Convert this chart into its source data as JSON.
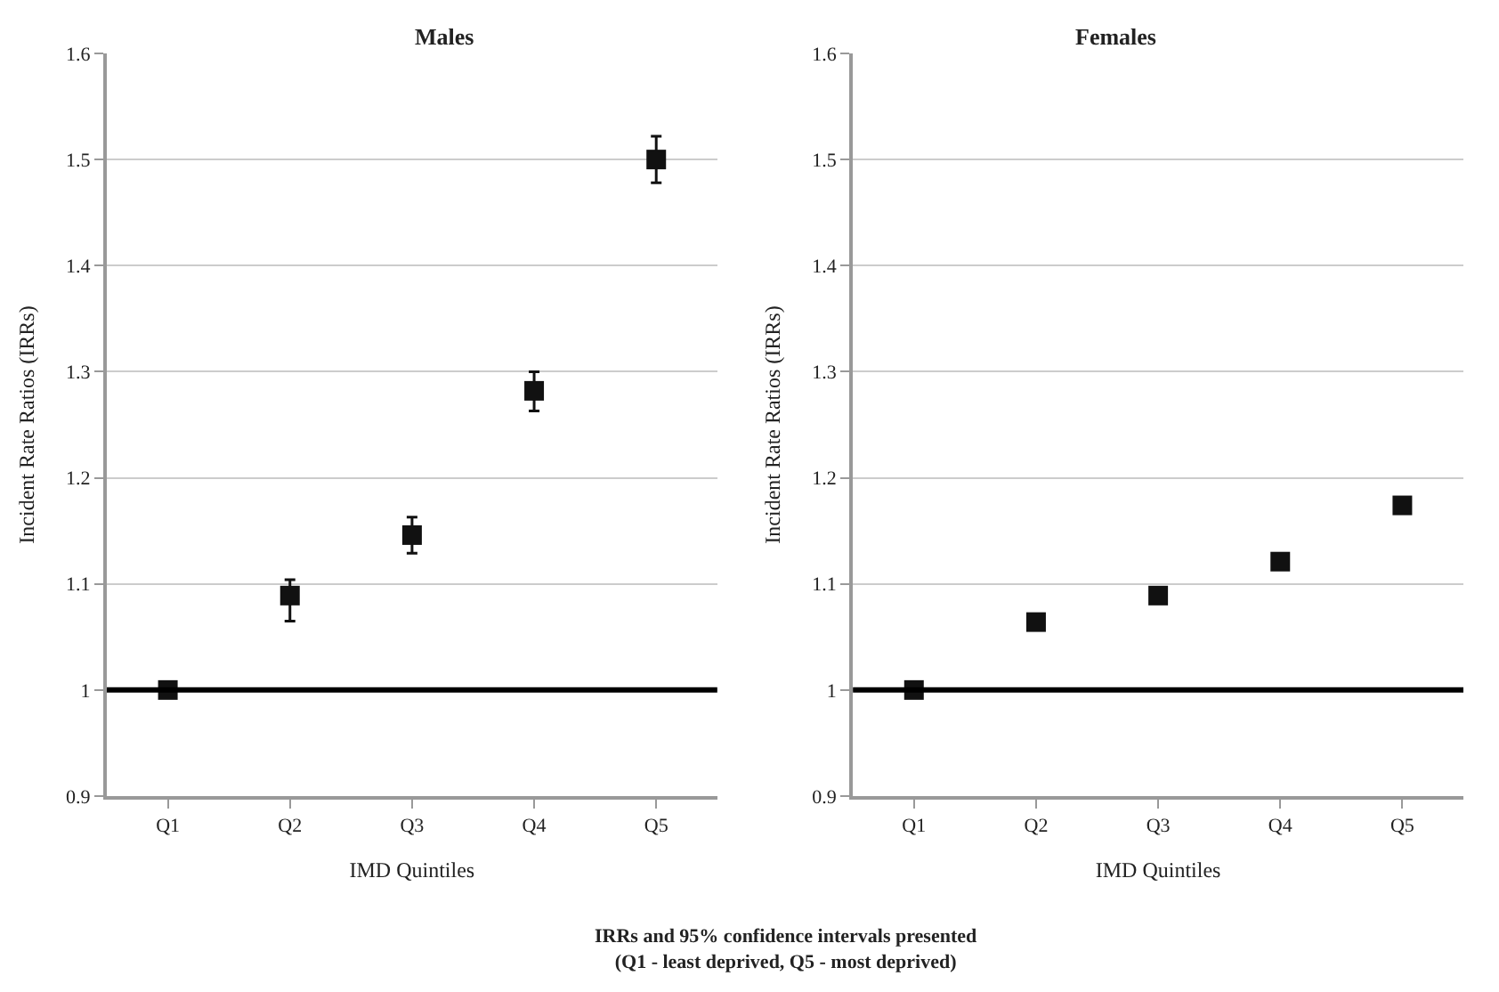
{
  "chart_data": [
    {
      "type": "scatter",
      "title": "Males",
      "xlabel": "IMD Quintiles",
      "ylabel": "Incident Rate Ratios (IRRs)",
      "categories": [
        "Q1",
        "Q2",
        "Q3",
        "Q4",
        "Q5"
      ],
      "series": [
        {
          "color": "#111111",
          "values": [
            1.0,
            1.089,
            1.146,
            1.282,
            1.5
          ],
          "errors": [
            null,
            [
              1.065,
              1.104
            ],
            [
              1.129,
              1.163
            ],
            [
              1.263,
              1.3
            ],
            [
              1.478,
              1.522
            ]
          ]
        }
      ],
      "ylim": [
        0.9,
        1.6
      ],
      "yticks": [
        0.9,
        1,
        1.1,
        1.2,
        1.3,
        1.4,
        1.5,
        1.6
      ],
      "grid": "y",
      "marker": "square",
      "ref_lines": [
        {
          "axis": "y",
          "value": 1,
          "color": "#000000"
        }
      ],
      "annotations": [
        "IRRs and 95% confidence intervals presented",
        "(Q1 - least deprived, Q5 - most deprived)"
      ]
    },
    {
      "type": "scatter",
      "title": "Females",
      "xlabel": "IMD Quintiles",
      "ylabel": "Incident Rate Ratios (IRRs)",
      "categories": [
        "Q1",
        "Q2",
        "Q3",
        "Q4",
        "Q5"
      ],
      "series": [
        {
          "color": "#111111",
          "values": [
            1.0,
            1.064,
            1.089,
            1.121,
            1.174
          ]
        }
      ],
      "ylim": [
        0.9,
        1.6
      ],
      "yticks": [
        0.9,
        1,
        1.1,
        1.2,
        1.3,
        1.4,
        1.5,
        1.6
      ],
      "grid": "y",
      "marker": "square",
      "ref_lines": [
        {
          "axis": "y",
          "value": 1,
          "color": "#000000"
        }
      ]
    }
  ]
}
